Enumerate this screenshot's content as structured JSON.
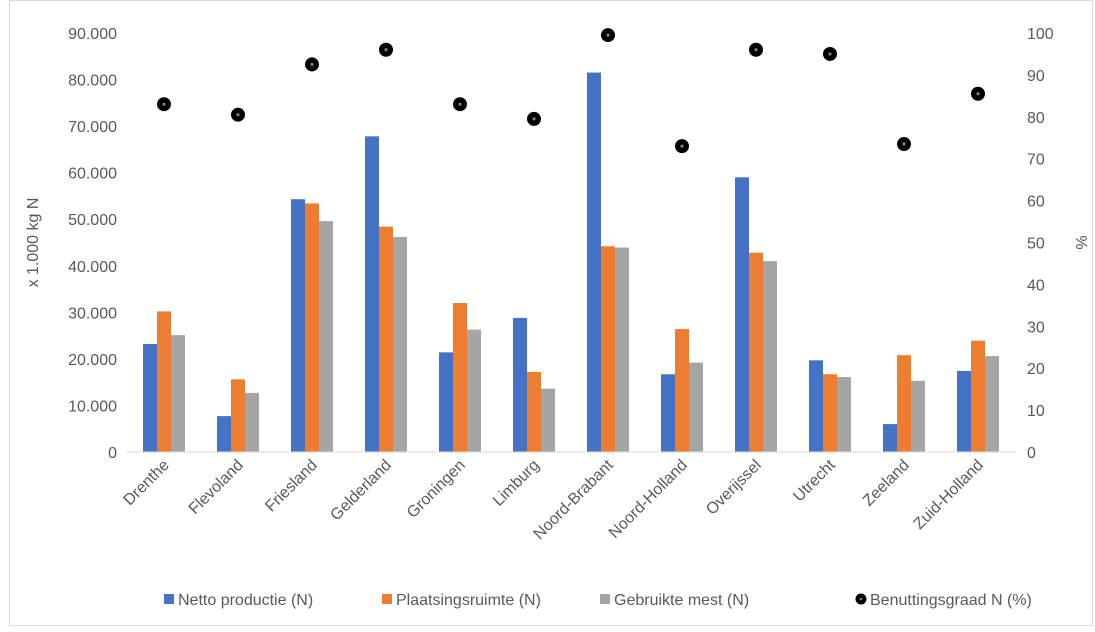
{
  "chart_data": {
    "type": "bar",
    "categories": [
      "Drenthe",
      "Flevoland",
      "Friesland",
      "Gelderland",
      "Groningen",
      "Limburg",
      "Noord-Brabant",
      "Noord-Holland",
      "Overijssel",
      "Utrecht",
      "Zeeland",
      "Zuid-Holland"
    ],
    "series": [
      {
        "name": "Netto productie (N)",
        "axis": "left",
        "color": "#4472C4",
        "values": [
          23200,
          7700,
          54300,
          67800,
          21400,
          28800,
          81500,
          16700,
          59000,
          19700,
          6000,
          17400
        ]
      },
      {
        "name": "Plaatsingsruimte (N)",
        "axis": "left",
        "color": "#ED7D31",
        "values": [
          30200,
          15600,
          53400,
          48400,
          32000,
          17200,
          44200,
          26400,
          42800,
          16700,
          20800,
          23900
        ]
      },
      {
        "name": "Gebruikte mest (N)",
        "axis": "left",
        "color": "#A5A5A5",
        "values": [
          25100,
          12700,
          49600,
          46200,
          26300,
          13600,
          43900,
          19200,
          41000,
          16100,
          15300,
          20600
        ]
      }
    ],
    "scatter_series": {
      "name": "Benuttingsgraad N (%)",
      "axis": "right",
      "type": "scatter",
      "color": "#000000",
      "values": [
        83,
        80.5,
        92.5,
        96,
        83,
        79.5,
        99.5,
        73,
        96,
        95,
        73.5,
        85.5
      ]
    },
    "ylabel": "x 1.000 kg N",
    "ylabel_right": "%",
    "ylim": [
      0,
      90000
    ],
    "ylim_right": [
      0,
      100
    ],
    "yticks": [
      "0",
      "10.000",
      "20.000",
      "30.000",
      "40.000",
      "50.000",
      "60.000",
      "70.000",
      "80.000",
      "90.000"
    ],
    "yticks_right": [
      "0",
      "10",
      "20",
      "30",
      "40",
      "50",
      "60",
      "70",
      "80",
      "90",
      "100"
    ],
    "grid": false,
    "legend_position": "bottom"
  }
}
